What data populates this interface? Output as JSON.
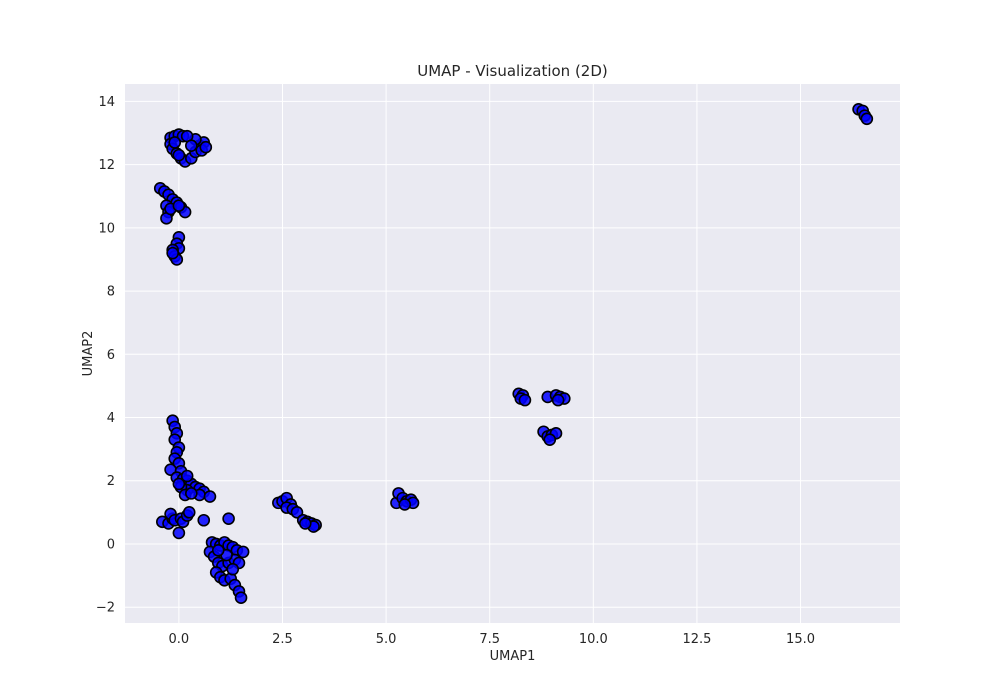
{
  "chart_data": {
    "type": "scatter",
    "title": "UMAP - Visualization (2D)",
    "xlabel": "UMAP1",
    "ylabel": "UMAP2",
    "xlim": [
      -1.3,
      17.4
    ],
    "ylim": [
      -2.5,
      14.55
    ],
    "xticks": [
      0.0,
      2.5,
      5.0,
      7.5,
      10.0,
      12.5,
      15.0
    ],
    "xtick_labels": [
      "0.0",
      "2.5",
      "5.0",
      "7.5",
      "10.0",
      "12.5",
      "15.0"
    ],
    "yticks": [
      -2,
      0,
      2,
      4,
      6,
      8,
      10,
      12,
      14
    ],
    "ytick_labels": [
      "−2",
      "0",
      "2",
      "4",
      "6",
      "8",
      "10",
      "12",
      "14"
    ],
    "grid": true,
    "colors": {
      "background": "#eaeaf2",
      "grid": "#ffffff",
      "marker_fill": "#0000ff",
      "marker_edge": "#000000"
    },
    "points": [
      [
        -0.2,
        12.85
      ],
      [
        -0.1,
        12.9
      ],
      [
        0.0,
        12.95
      ],
      [
        0.1,
        12.9
      ],
      [
        -0.2,
        12.65
      ],
      [
        -0.15,
        12.5
      ],
      [
        -0.05,
        12.35
      ],
      [
        0.05,
        12.2
      ],
      [
        0.15,
        12.1
      ],
      [
        0.3,
        12.2
      ],
      [
        0.4,
        12.4
      ],
      [
        0.5,
        12.6
      ],
      [
        0.6,
        12.7
      ],
      [
        0.4,
        12.8
      ],
      [
        0.2,
        12.9
      ],
      [
        0.55,
        12.45
      ],
      [
        0.3,
        12.6
      ],
      [
        -0.1,
        12.7
      ],
      [
        0.0,
        12.3
      ],
      [
        0.65,
        12.55
      ],
      [
        -0.45,
        11.25
      ],
      [
        -0.35,
        11.15
      ],
      [
        -0.25,
        11.05
      ],
      [
        -0.15,
        10.9
      ],
      [
        -0.05,
        10.8
      ],
      [
        0.05,
        10.65
      ],
      [
        0.15,
        10.5
      ],
      [
        -0.3,
        10.7
      ],
      [
        -0.25,
        10.5
      ],
      [
        -0.3,
        10.3
      ],
      [
        -0.2,
        10.6
      ],
      [
        0.0,
        10.7
      ],
      [
        0.0,
        9.7
      ],
      [
        -0.05,
        9.5
      ],
      [
        0.0,
        9.35
      ],
      [
        -0.15,
        9.3
      ],
      [
        -0.1,
        9.1
      ],
      [
        -0.05,
        9.0
      ],
      [
        -0.15,
        9.2
      ],
      [
        -0.15,
        3.9
      ],
      [
        -0.1,
        3.7
      ],
      [
        -0.05,
        3.5
      ],
      [
        -0.1,
        3.3
      ],
      [
        0.0,
        3.05
      ],
      [
        -0.05,
        2.9
      ],
      [
        -0.1,
        2.7
      ],
      [
        0.0,
        2.55
      ],
      [
        -0.2,
        2.35
      ],
      [
        0.05,
        2.3
      ],
      [
        -0.05,
        2.1
      ],
      [
        0.1,
        2.05
      ],
      [
        0.2,
        2.0
      ],
      [
        0.3,
        1.9
      ],
      [
        0.4,
        1.8
      ],
      [
        0.5,
        1.75
      ],
      [
        0.6,
        1.65
      ],
      [
        0.5,
        1.55
      ],
      [
        0.2,
        1.7
      ],
      [
        0.05,
        1.8
      ],
      [
        0.15,
        1.55
      ],
      [
        0.3,
        1.6
      ],
      [
        0.75,
        1.5
      ],
      [
        0.0,
        1.9
      ],
      [
        0.2,
        2.15
      ],
      [
        -0.4,
        0.7
      ],
      [
        -0.25,
        0.65
      ],
      [
        -0.15,
        0.8
      ],
      [
        -0.2,
        0.95
      ],
      [
        -0.1,
        0.75
      ],
      [
        0.05,
        0.8
      ],
      [
        0.1,
        0.7
      ],
      [
        0.2,
        0.9
      ],
      [
        0.25,
        1.0
      ],
      [
        0.0,
        0.35
      ],
      [
        0.6,
        0.75
      ],
      [
        1.2,
        0.8
      ],
      [
        0.8,
        0.05
      ],
      [
        0.9,
        0.0
      ],
      [
        1.0,
        -0.05
      ],
      [
        1.1,
        0.05
      ],
      [
        1.2,
        -0.05
      ],
      [
        1.3,
        -0.1
      ],
      [
        1.4,
        -0.2
      ],
      [
        1.55,
        -0.25
      ],
      [
        0.75,
        -0.25
      ],
      [
        0.85,
        -0.4
      ],
      [
        0.95,
        -0.6
      ],
      [
        1.05,
        -0.7
      ],
      [
        1.2,
        -0.6
      ],
      [
        1.35,
        -0.5
      ],
      [
        1.45,
        -0.6
      ],
      [
        0.9,
        -0.9
      ],
      [
        1.0,
        -1.05
      ],
      [
        1.1,
        -1.15
      ],
      [
        1.25,
        -1.1
      ],
      [
        1.35,
        -1.3
      ],
      [
        1.45,
        -1.5
      ],
      [
        1.5,
        -1.7
      ],
      [
        1.15,
        -0.35
      ],
      [
        0.95,
        -0.2
      ],
      [
        1.3,
        -0.8
      ],
      [
        2.4,
        1.3
      ],
      [
        2.5,
        1.35
      ],
      [
        2.6,
        1.45
      ],
      [
        2.7,
        1.25
      ],
      [
        2.6,
        1.15
      ],
      [
        2.75,
        1.1
      ],
      [
        2.85,
        1.0
      ],
      [
        3.0,
        0.75
      ],
      [
        3.1,
        0.7
      ],
      [
        3.2,
        0.65
      ],
      [
        3.3,
        0.6
      ],
      [
        3.25,
        0.55
      ],
      [
        3.05,
        0.65
      ],
      [
        5.25,
        1.3
      ],
      [
        5.3,
        1.6
      ],
      [
        5.4,
        1.45
      ],
      [
        5.5,
        1.35
      ],
      [
        5.6,
        1.4
      ],
      [
        5.65,
        1.3
      ],
      [
        5.45,
        1.25
      ],
      [
        8.2,
        4.75
      ],
      [
        8.3,
        4.7
      ],
      [
        8.25,
        4.6
      ],
      [
        8.35,
        4.55
      ],
      [
        8.9,
        4.65
      ],
      [
        9.1,
        4.7
      ],
      [
        9.2,
        4.65
      ],
      [
        9.3,
        4.6
      ],
      [
        9.15,
        4.55
      ],
      [
        8.8,
        3.55
      ],
      [
        8.9,
        3.4
      ],
      [
        9.0,
        3.45
      ],
      [
        9.1,
        3.5
      ],
      [
        8.95,
        3.3
      ],
      [
        16.4,
        13.75
      ],
      [
        16.5,
        13.7
      ],
      [
        16.55,
        13.55
      ],
      [
        16.6,
        13.45
      ]
    ]
  }
}
